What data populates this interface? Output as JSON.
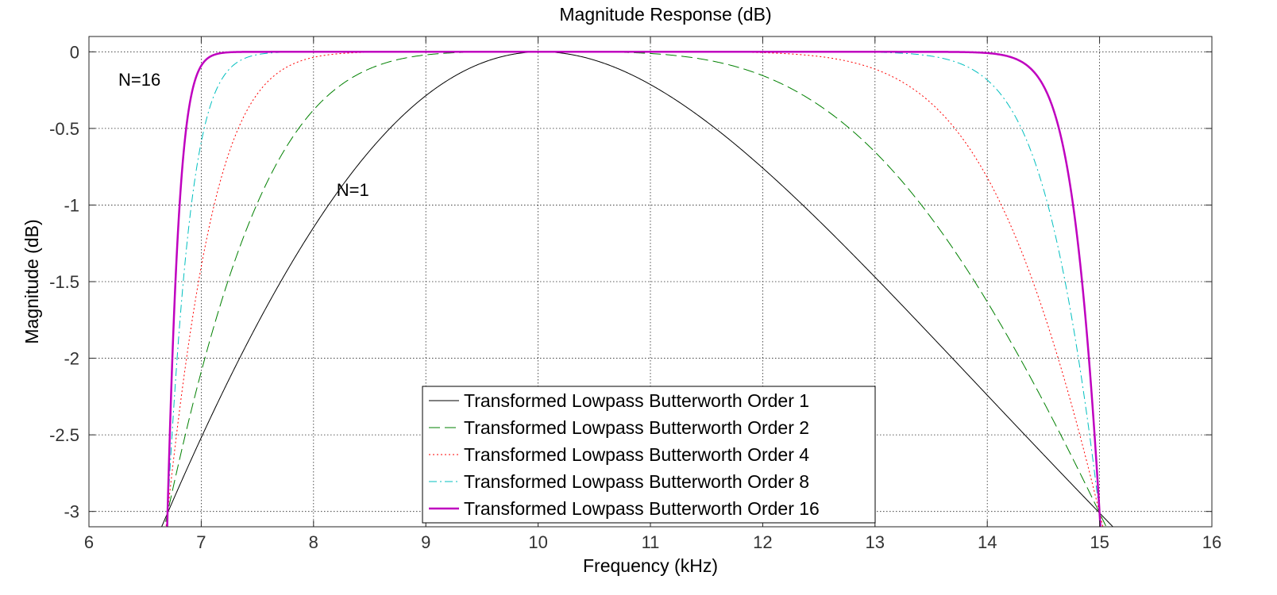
{
  "chart_data": {
    "type": "line",
    "title": "Magnitude Response (dB)",
    "xlabel": "Frequency (kHz)",
    "ylabel": "Magnitude (dB)",
    "xlim": [
      6,
      16
    ],
    "ylim": [
      -3.1,
      0.1
    ],
    "xticks": [
      6,
      7,
      8,
      9,
      10,
      11,
      12,
      13,
      14,
      15,
      16
    ],
    "xtick_labels": [
      "6",
      "7",
      "8",
      "9",
      "10",
      "11",
      "12",
      "13",
      "14",
      "15",
      "16"
    ],
    "yticks": [
      0,
      -0.5,
      -1,
      -1.5,
      -2,
      -2.5,
      -3
    ],
    "ytick_labels": [
      "0",
      "-0.5",
      "-1",
      "-1.5",
      "-2",
      "-2.5",
      "-3"
    ],
    "grid": true,
    "legend_position": "lower-center",
    "series": [
      {
        "name": "Transformed Lowpass Butterworth Order 1",
        "order": 1,
        "color": "#000000",
        "dash": "none",
        "width": 1
      },
      {
        "name": "Transformed Lowpass Butterworth Order 2",
        "order": 2,
        "color": "#008000",
        "dash": "dashed",
        "width": 1
      },
      {
        "name": "Transformed Lowpass Butterworth Order 4",
        "order": 4,
        "color": "#ff0000",
        "dash": "dotted",
        "width": 1
      },
      {
        "name": "Transformed Lowpass Butterworth Order 8",
        "order": 8,
        "color": "#00bfbf",
        "dash": "dashdot",
        "width": 1
      },
      {
        "name": "Transformed Lowpass Butterworth Order 16",
        "order": 16,
        "color": "#bf00bf",
        "dash": "none",
        "width": 2.5
      }
    ],
    "passband_edges_khz": [
      6.7,
      15.0
    ],
    "annotations": [
      {
        "text": "N=16",
        "x": 6.45,
        "y": -0.18
      },
      {
        "text": "N=1",
        "x": 8.35,
        "y": -0.9
      }
    ]
  }
}
